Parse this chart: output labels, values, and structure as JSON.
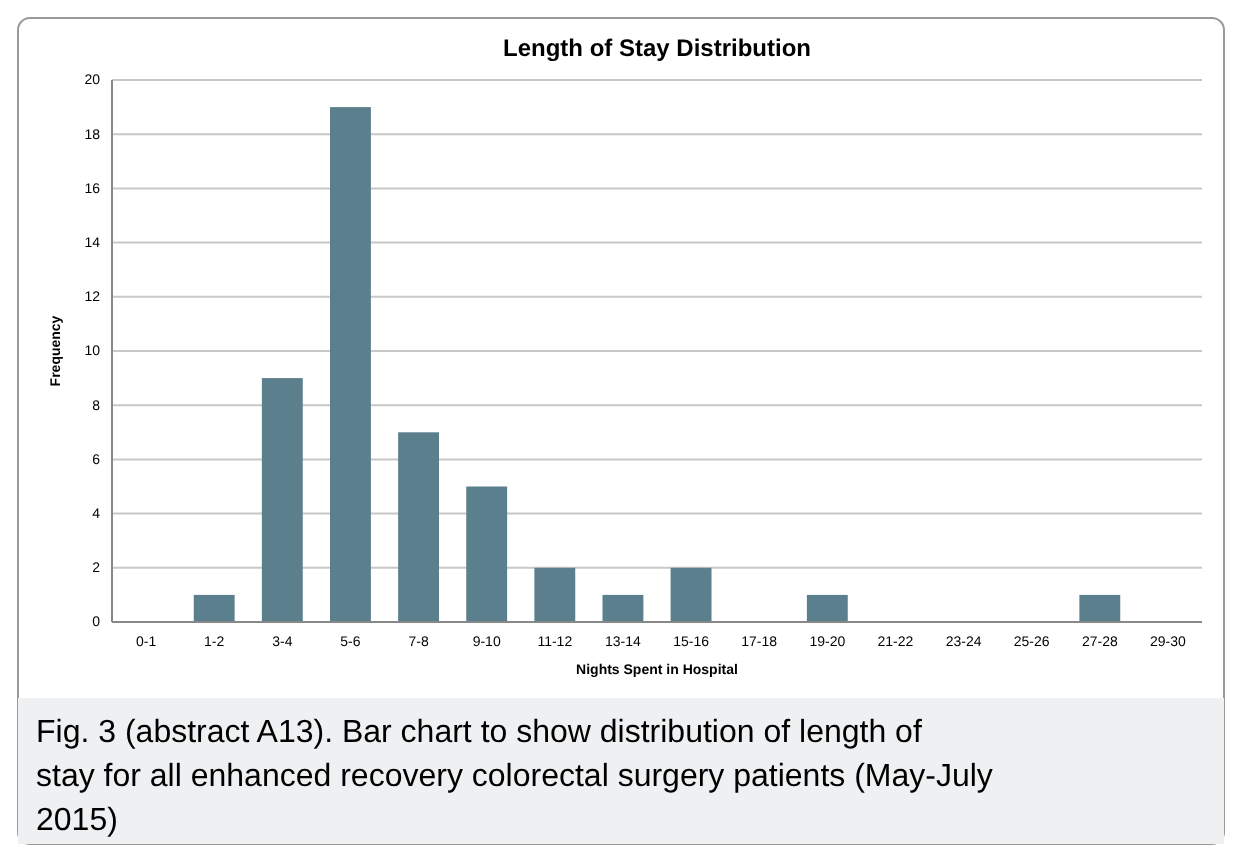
{
  "chart_data": {
    "type": "bar",
    "title": "Length of Stay Distribution",
    "xlabel": "Nights Spent in Hospital",
    "ylabel": "Frequency",
    "categories": [
      "0-1",
      "1-2",
      "3-4",
      "5-6",
      "7-8",
      "9-10",
      "11-12",
      "13-14",
      "15-16",
      "17-18",
      "19-20",
      "21-22",
      "23-24",
      "25-26",
      "27-28",
      "29-30"
    ],
    "values": [
      0,
      1,
      9,
      19,
      7,
      5,
      2,
      1,
      2,
      0,
      1,
      0,
      0,
      0,
      1,
      0
    ],
    "color": "#5b7f8c",
    "ylim": [
      0,
      20
    ],
    "yticks": [
      0,
      2,
      4,
      6,
      8,
      10,
      12,
      14,
      16,
      18,
      20
    ],
    "grid": "y",
    "annotations": [
      "Fig. 3 (abstract A13). Bar chart to show distribution of length of stay for all enhanced recovery colorectal surgery patients (May-July 2015)"
    ]
  }
}
